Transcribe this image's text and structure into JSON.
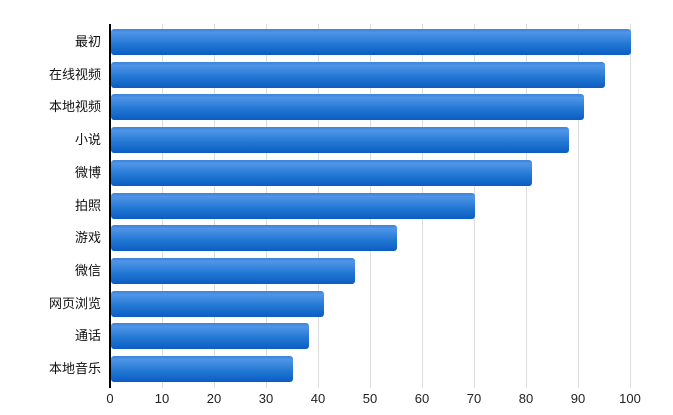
{
  "chart_data": {
    "type": "bar",
    "orientation": "horizontal",
    "title": "",
    "xlabel": "",
    "ylabel": "",
    "categories": [
      "最初",
      "在线视频",
      "本地视频",
      "小说",
      "微博",
      "拍照",
      "游戏",
      "微信",
      "网页浏览",
      "通话",
      "本地音乐"
    ],
    "values": [
      100,
      95,
      91,
      88,
      81,
      70,
      55,
      47,
      41,
      38,
      35
    ],
    "xlim": [
      0,
      100
    ],
    "xticks": [
      0,
      10,
      20,
      30,
      40,
      50,
      60,
      70,
      80,
      90,
      100
    ],
    "grid": "vertical-only",
    "legend": "none",
    "colors": {
      "bar_gradient_top": "#4f95e8",
      "bar_gradient_mid": "#2277d3",
      "bar_gradient_bottom": "#0b5dc2",
      "gridline": "#dcdcdc",
      "axis_line": "#000000",
      "tick_label": "#222222",
      "category_label": "#111111",
      "background": "#ffffff"
    }
  }
}
